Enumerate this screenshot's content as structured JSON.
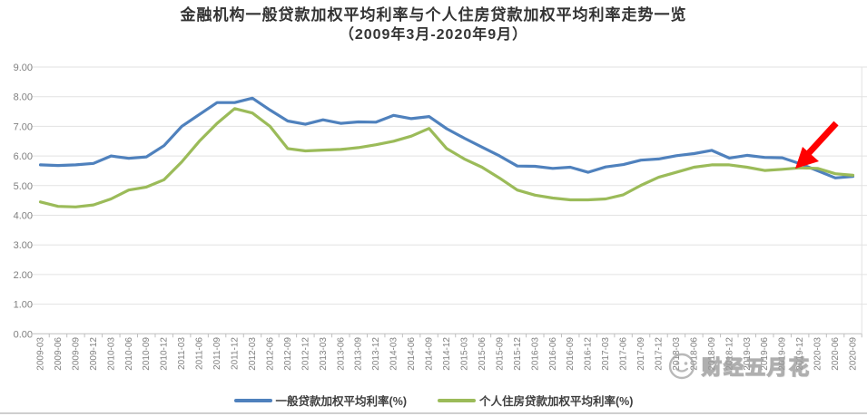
{
  "title": {
    "line1": "金融机构一般贷款加权平均利率与个人住房贷款加权平均利率走势一览",
    "line2": "（2009年3月-2020年9月）"
  },
  "watermark": {
    "label": "财经五月花",
    "icon": "smiley-logo"
  },
  "annotation": {
    "type": "arrow",
    "color": "#ff0000",
    "description": "red arrow pointing at the late-2019/2020 crossing of the two rate lines"
  },
  "colors": {
    "general_loan_line": "#4f81bd",
    "housing_loan_line": "#9bbb59",
    "gridline": "#e2e2e2",
    "axis_line": "#bfbfbf",
    "tick_label": "#7f7f7f"
  },
  "chart_data": {
    "type": "line",
    "title": "金融机构一般贷款加权平均利率与个人住房贷款加权平均利率走势一览（2009年3月-2020年9月）",
    "ylim": [
      0,
      9
    ],
    "ytick_step": 1,
    "y_tick_labels": [
      "0.00",
      "1.00",
      "2.00",
      "3.00",
      "4.00",
      "5.00",
      "6.00",
      "7.00",
      "8.00",
      "9.00"
    ],
    "grid": true,
    "legend_position": "bottom",
    "categories": [
      "2009-03",
      "2009-06",
      "2009-09",
      "2009-12",
      "2010-03",
      "2010-06",
      "2010-09",
      "2010-12",
      "2011-03",
      "2011-06",
      "2011-09",
      "2011-12",
      "2012-03",
      "2012-06",
      "2012-09",
      "2012-12",
      "2013-03",
      "2013-06",
      "2013-09",
      "2013-12",
      "2014-03",
      "2014-06",
      "2014-09",
      "2014-12",
      "2015-03",
      "2015-06",
      "2015-09",
      "2015-12",
      "2016-03",
      "2016-06",
      "2016-09",
      "2016-12",
      "2017-03",
      "2017-06",
      "2017-09",
      "2017-12",
      "2018-03",
      "2018-06",
      "2018-09",
      "2018-12",
      "2019-03",
      "2019-06",
      "2019-09",
      "2019-12",
      "2020-03",
      "2020-06",
      "2020-09"
    ],
    "series": [
      {
        "name": "一般贷款加权平均利率(%)",
        "color": "#4f81bd",
        "values": [
          5.7,
          5.68,
          5.7,
          5.75,
          6.0,
          5.92,
          5.97,
          6.35,
          7.0,
          7.4,
          7.8,
          7.8,
          7.95,
          7.55,
          7.18,
          7.07,
          7.22,
          7.1,
          7.15,
          7.14,
          7.37,
          7.26,
          7.33,
          6.92,
          6.6,
          6.3,
          6.0,
          5.66,
          5.65,
          5.58,
          5.62,
          5.45,
          5.63,
          5.71,
          5.86,
          5.9,
          6.01,
          6.08,
          6.19,
          5.93,
          6.02,
          5.95,
          5.94,
          5.74,
          5.5,
          5.26,
          5.31
        ]
      },
      {
        "name": "个人住房贷款加权平均利率(%)",
        "color": "#9bbb59",
        "values": [
          4.45,
          4.3,
          4.28,
          4.35,
          4.55,
          4.85,
          4.95,
          5.2,
          5.8,
          6.5,
          7.1,
          7.6,
          7.45,
          7.0,
          6.25,
          6.17,
          6.2,
          6.22,
          6.28,
          6.38,
          6.5,
          6.67,
          6.93,
          6.25,
          5.9,
          5.62,
          5.25,
          4.85,
          4.68,
          4.58,
          4.52,
          4.52,
          4.55,
          4.69,
          5.01,
          5.28,
          5.45,
          5.62,
          5.7,
          5.7,
          5.62,
          5.51,
          5.55,
          5.6,
          5.58,
          5.4,
          5.35
        ]
      }
    ]
  }
}
